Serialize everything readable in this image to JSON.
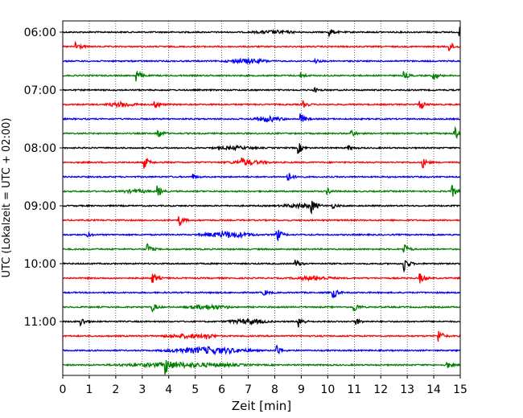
{
  "chart_data": {
    "type": "line",
    "title": "",
    "xlabel": "Zeit  [min]",
    "ylabel": "UTC (Lokalzeit = UTC + 02:00)",
    "xlim": [
      0,
      15
    ],
    "x_ticks": [
      "0",
      "1",
      "2",
      "3",
      "4",
      "5",
      "6",
      "7",
      "8",
      "9",
      "10",
      "11",
      "12",
      "13",
      "14",
      "15"
    ],
    "y_tick_labels": [
      "06:00",
      "07:00",
      "08:00",
      "09:00",
      "10:00",
      "11:00"
    ],
    "y_tick_row_index": [
      0,
      4,
      8,
      12,
      16,
      20
    ],
    "grid": "vertical dotted at each minute",
    "row_interval_minutes": 15,
    "colors_cycle": [
      "#000000",
      "#ff0000",
      "#0000ff",
      "#008000"
    ],
    "rows": [
      {
        "start": "06:00",
        "color": "#000000",
        "events": [
          {
            "t": 10.1,
            "a": 0.5
          },
          {
            "t": 15.0,
            "a": 0.6
          }
        ],
        "noisy": [
          {
            "from": 7,
            "to": 9,
            "a": 0.2
          }
        ]
      },
      {
        "start": "06:15",
        "color": "#ff0000",
        "events": [
          {
            "t": 0.5,
            "a": 0.8
          },
          {
            "t": 14.6,
            "a": 0.7
          }
        ],
        "noisy": []
      },
      {
        "start": "06:30",
        "color": "#0000ff",
        "events": [
          {
            "t": 9.5,
            "a": 0.4
          }
        ],
        "noisy": [
          {
            "from": 6,
            "to": 8,
            "a": 0.3
          }
        ]
      },
      {
        "start": "06:45",
        "color": "#008000",
        "events": [
          {
            "t": 2.8,
            "a": 0.9
          },
          {
            "t": 9.0,
            "a": 0.4
          },
          {
            "t": 12.9,
            "a": 0.5
          },
          {
            "t": 14.0,
            "a": 0.6
          }
        ],
        "noisy": []
      },
      {
        "start": "07:00",
        "color": "#000000",
        "events": [
          {
            "t": 9.5,
            "a": 0.3
          }
        ],
        "noisy": []
      },
      {
        "start": "07:15",
        "color": "#ff0000",
        "events": [
          {
            "t": 3.5,
            "a": 0.7
          },
          {
            "t": 9.1,
            "a": 0.4
          },
          {
            "t": 13.5,
            "a": 0.7
          }
        ],
        "noisy": [
          {
            "from": 1.5,
            "to": 3,
            "a": 0.3
          }
        ]
      },
      {
        "start": "07:30",
        "color": "#0000ff",
        "events": [
          {
            "t": 9.0,
            "a": 0.7
          }
        ],
        "noisy": [
          {
            "from": 7,
            "to": 8.5,
            "a": 0.35
          }
        ]
      },
      {
        "start": "07:45",
        "color": "#008000",
        "events": [
          {
            "t": 3.6,
            "a": 0.7
          },
          {
            "t": 10.9,
            "a": 0.5
          },
          {
            "t": 14.8,
            "a": 0.9
          }
        ],
        "noisy": []
      },
      {
        "start": "08:00",
        "color": "#000000",
        "events": [
          {
            "t": 8.9,
            "a": 0.8
          },
          {
            "t": 10.8,
            "a": 0.3
          }
        ],
        "noisy": [
          {
            "from": 5.5,
            "to": 7.5,
            "a": 0.2
          }
        ]
      },
      {
        "start": "08:15",
        "color": "#ff0000",
        "events": [
          {
            "t": 3.1,
            "a": 0.8
          },
          {
            "t": 6.8,
            "a": 0.4
          },
          {
            "t": 13.6,
            "a": 0.7
          }
        ],
        "noisy": [
          {
            "from": 6,
            "to": 8,
            "a": 0.25
          }
        ]
      },
      {
        "start": "08:30",
        "color": "#0000ff",
        "events": [
          {
            "t": 4.9,
            "a": 0.4
          },
          {
            "t": 8.5,
            "a": 0.7
          }
        ],
        "noisy": []
      },
      {
        "start": "08:45",
        "color": "#008000",
        "events": [
          {
            "t": 3.6,
            "a": 0.7
          },
          {
            "t": 10.0,
            "a": 0.4
          },
          {
            "t": 14.7,
            "a": 0.8
          }
        ],
        "noisy": [
          {
            "from": 2,
            "to": 3.5,
            "a": 0.2
          }
        ]
      },
      {
        "start": "09:00",
        "color": "#000000",
        "events": [
          {
            "t": 9.4,
            "a": 0.8
          },
          {
            "t": 10.2,
            "a": 0.3
          }
        ],
        "noisy": [
          {
            "from": 8,
            "to": 10,
            "a": 0.25
          }
        ]
      },
      {
        "start": "09:15",
        "color": "#ff0000",
        "events": [
          {
            "t": 4.4,
            "a": 0.8
          }
        ],
        "noisy": []
      },
      {
        "start": "09:30",
        "color": "#0000ff",
        "events": [
          {
            "t": 0.9,
            "a": 0.4
          },
          {
            "t": 8.1,
            "a": 0.9
          }
        ],
        "noisy": [
          {
            "from": 5,
            "to": 7.5,
            "a": 0.4
          }
        ]
      },
      {
        "start": "09:45",
        "color": "#008000",
        "events": [
          {
            "t": 3.2,
            "a": 0.8
          },
          {
            "t": 12.9,
            "a": 0.8
          }
        ],
        "noisy": []
      },
      {
        "start": "10:00",
        "color": "#000000",
        "events": [
          {
            "t": 8.8,
            "a": 0.5
          },
          {
            "t": 12.9,
            "a": 1.1
          }
        ],
        "noisy": []
      },
      {
        "start": "10:15",
        "color": "#ff0000",
        "events": [
          {
            "t": 3.4,
            "a": 0.8
          },
          {
            "t": 13.5,
            "a": 0.7
          }
        ],
        "noisy": [
          {
            "from": 8.5,
            "to": 10.5,
            "a": 0.25
          }
        ]
      },
      {
        "start": "10:30",
        "color": "#0000ff",
        "events": [
          {
            "t": 7.6,
            "a": 0.4
          },
          {
            "t": 10.2,
            "a": 0.9
          }
        ],
        "noisy": []
      },
      {
        "start": "10:45",
        "color": "#008000",
        "events": [
          {
            "t": 3.4,
            "a": 0.6
          },
          {
            "t": 11.0,
            "a": 0.7
          }
        ],
        "noisy": [
          {
            "from": 4.5,
            "to": 6.5,
            "a": 0.3
          }
        ]
      },
      {
        "start": "11:00",
        "color": "#000000",
        "events": [
          {
            "t": 0.7,
            "a": 0.6
          },
          {
            "t": 8.9,
            "a": 0.9
          },
          {
            "t": 11.1,
            "a": 0.4
          }
        ],
        "noisy": [
          {
            "from": 6,
            "to": 8,
            "a": 0.3
          }
        ]
      },
      {
        "start": "11:15",
        "color": "#ff0000",
        "events": [
          {
            "t": 5.4,
            "a": 0.6
          },
          {
            "t": 14.2,
            "a": 0.9
          }
        ],
        "noisy": [
          {
            "from": 3.5,
            "to": 6,
            "a": 0.25
          }
        ]
      },
      {
        "start": "11:30",
        "color": "#0000ff",
        "events": [
          {
            "t": 8.1,
            "a": 0.8
          }
        ],
        "noisy": [
          {
            "from": 3.5,
            "to": 7.5,
            "a": 0.45
          }
        ]
      },
      {
        "start": "11:45",
        "color": "#008000",
        "events": [
          {
            "t": 3.9,
            "a": 1.0
          },
          {
            "t": 14.5,
            "a": 0.5
          }
        ],
        "noisy": [
          {
            "from": 1.5,
            "to": 7.5,
            "a": 0.3
          }
        ]
      }
    ]
  }
}
